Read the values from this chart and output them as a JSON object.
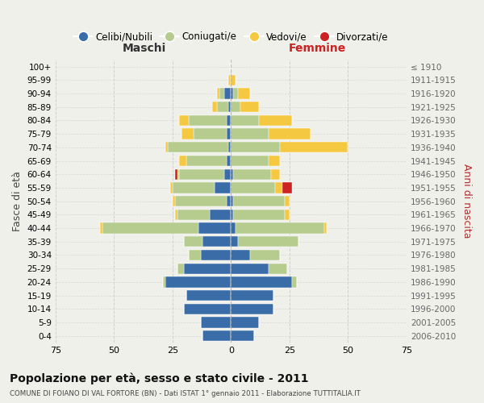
{
  "age_groups": [
    "0-4",
    "5-9",
    "10-14",
    "15-19",
    "20-24",
    "25-29",
    "30-34",
    "35-39",
    "40-44",
    "45-49",
    "50-54",
    "55-59",
    "60-64",
    "65-69",
    "70-74",
    "75-79",
    "80-84",
    "85-89",
    "90-94",
    "95-99",
    "100+"
  ],
  "birth_years": [
    "2006-2010",
    "2001-2005",
    "1996-2000",
    "1991-1995",
    "1986-1990",
    "1981-1985",
    "1976-1980",
    "1971-1975",
    "1966-1970",
    "1961-1965",
    "1956-1960",
    "1951-1955",
    "1946-1950",
    "1941-1945",
    "1936-1940",
    "1931-1935",
    "1926-1930",
    "1921-1925",
    "1916-1920",
    "1911-1915",
    "≤ 1910"
  ],
  "males": {
    "celibi": [
      12,
      13,
      20,
      19,
      28,
      20,
      13,
      12,
      14,
      9,
      2,
      7,
      3,
      2,
      1,
      2,
      2,
      1,
      3,
      0,
      0
    ],
    "coniugati": [
      0,
      0,
      0,
      0,
      1,
      3,
      5,
      8,
      41,
      14,
      22,
      18,
      19,
      17,
      26,
      14,
      16,
      5,
      2,
      0,
      0
    ],
    "vedovi": [
      0,
      0,
      0,
      0,
      0,
      0,
      0,
      0,
      1,
      1,
      1,
      1,
      1,
      3,
      1,
      5,
      4,
      2,
      1,
      1,
      0
    ],
    "divorziati": [
      0,
      0,
      0,
      0,
      0,
      0,
      0,
      0,
      0,
      0,
      0,
      0,
      1,
      0,
      0,
      0,
      0,
      0,
      0,
      0,
      0
    ]
  },
  "females": {
    "nubili": [
      10,
      12,
      18,
      18,
      26,
      16,
      8,
      3,
      2,
      1,
      1,
      0,
      1,
      0,
      0,
      0,
      0,
      0,
      1,
      0,
      0
    ],
    "coniugate": [
      0,
      0,
      0,
      0,
      2,
      8,
      13,
      26,
      38,
      22,
      22,
      19,
      16,
      16,
      21,
      16,
      12,
      4,
      2,
      0,
      0
    ],
    "vedove": [
      0,
      0,
      0,
      0,
      0,
      0,
      0,
      0,
      1,
      2,
      2,
      3,
      4,
      5,
      29,
      18,
      14,
      8,
      5,
      2,
      0
    ],
    "divorziate": [
      0,
      0,
      0,
      0,
      0,
      0,
      0,
      0,
      0,
      0,
      0,
      4,
      0,
      0,
      0,
      0,
      0,
      0,
      0,
      0,
      0
    ]
  },
  "colors": {
    "celibi": "#3a6ca8",
    "coniugati": "#b5cc8e",
    "vedovi": "#f5c842",
    "divorziati": "#cc2222"
  },
  "title": "Popolazione per età, sesso e stato civile - 2011",
  "subtitle": "COMUNE DI FOIANO DI VAL FORTORE (BN) - Dati ISTAT 1° gennaio 2011 - Elaborazione TUTTITALIA.IT",
  "xlabel_left": "Maschi",
  "xlabel_right": "Femmine",
  "ylabel_left": "Fasce di età",
  "ylabel_right": "Anni di nascita",
  "xlim": 75,
  "legend_labels": [
    "Celibi/Nubili",
    "Coniugati/e",
    "Vedovi/e",
    "Divorzati/e"
  ],
  "bg_color": "#f0f0eb",
  "grid_color": "#cccccc"
}
